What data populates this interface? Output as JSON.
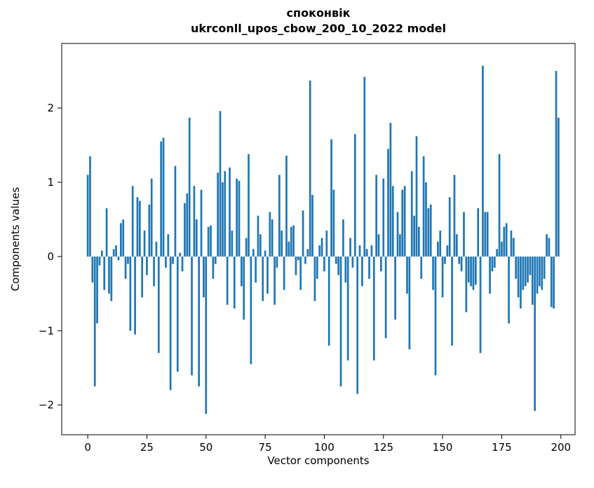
{
  "chart_data": {
    "type": "bar",
    "title_line1": "споконвік",
    "title_line2": "ukrconll_upos_cbow_200_10_2022 model",
    "xlabel": "Vector components",
    "ylabel": "Components values",
    "bar_color": "#1f77b4",
    "bar_width": 0.8,
    "x_start": 0,
    "xlim": [
      -11,
      206
    ],
    "ylim": [
      -2.4,
      2.87
    ],
    "grid": false,
    "legend": "none",
    "xticks": [
      {
        "v": 0,
        "label": "0"
      },
      {
        "v": 25,
        "label": "25"
      },
      {
        "v": 50,
        "label": "50"
      },
      {
        "v": 75,
        "label": "75"
      },
      {
        "v": 100,
        "label": "100"
      },
      {
        "v": 125,
        "label": "125"
      },
      {
        "v": 150,
        "label": "150"
      },
      {
        "v": 175,
        "label": "175"
      },
      {
        "v": 200,
        "label": "200"
      }
    ],
    "yticks": [
      {
        "v": -2,
        "label": "−2"
      },
      {
        "v": -1,
        "label": "−1"
      },
      {
        "v": 0,
        "label": "0"
      },
      {
        "v": 1,
        "label": "1"
      },
      {
        "v": 2,
        "label": "2"
      }
    ],
    "values": [
      1.1,
      1.35,
      -0.35,
      -1.75,
      -0.9,
      -0.12,
      0.08,
      -0.45,
      0.65,
      -0.5,
      -0.6,
      0.1,
      0.15,
      -0.05,
      0.45,
      0.5,
      -0.3,
      -0.1,
      -1.0,
      0.95,
      -1.05,
      0.8,
      0.75,
      -0.55,
      0.35,
      -0.25,
      0.7,
      1.05,
      -0.4,
      0.2,
      -1.3,
      1.55,
      1.6,
      -0.15,
      0.3,
      -1.8,
      -0.1,
      1.22,
      -1.55,
      0.05,
      -0.2,
      0.72,
      0.85,
      1.87,
      -1.6,
      0.95,
      0.5,
      -1.75,
      0.9,
      -0.55,
      -2.12,
      0.4,
      0.42,
      -0.3,
      -0.1,
      1.13,
      1.96,
      1.0,
      1.15,
      -0.65,
      1.2,
      0.35,
      -0.7,
      1.05,
      1.02,
      -0.4,
      -0.85,
      0.25,
      1.38,
      -1.45,
      0.1,
      -0.35,
      0.55,
      0.3,
      -0.6,
      0.08,
      -0.5,
      0.6,
      0.5,
      -0.65,
      -0.15,
      1.1,
      0.35,
      -0.45,
      1.36,
      0.2,
      0.4,
      0.42,
      -0.25,
      -0.05,
      -0.45,
      0.62,
      -0.1,
      0.1,
      2.37,
      0.83,
      -0.6,
      -0.3,
      0.15,
      0.25,
      -0.2,
      0.35,
      -1.2,
      1.58,
      0.9,
      -0.1,
      -0.25,
      -1.75,
      0.5,
      -0.35,
      -1.4,
      0.25,
      -0.15,
      1.65,
      -1.85,
      0.15,
      -0.4,
      2.42,
      0.1,
      -0.3,
      0.15,
      -1.4,
      1.1,
      0.3,
      -0.2,
      1.05,
      -1.1,
      1.45,
      1.8,
      0.95,
      -0.85,
      0.6,
      0.3,
      0.9,
      0.95,
      -0.5,
      -1.25,
      1.15,
      0.55,
      1.62,
      0.4,
      -0.3,
      1.35,
      1.0,
      0.65,
      0.7,
      -0.45,
      -1.6,
      0.2,
      0.35,
      -0.55,
      -0.1,
      0.15,
      0.8,
      -1.2,
      1.1,
      0.3,
      -0.1,
      -0.2,
      0.6,
      -0.75,
      -0.35,
      -0.4,
      -0.45,
      -0.38,
      0.65,
      -1.3,
      2.57,
      0.6,
      0.6,
      -0.5,
      -0.2,
      -0.15,
      0.1,
      1.38,
      0.2,
      0.4,
      0.45,
      -0.9,
      0.35,
      0.25,
      -0.3,
      -0.55,
      -0.7,
      -0.45,
      -0.4,
      -0.35,
      -0.25,
      -0.65,
      -2.08,
      -0.5,
      -0.4,
      -0.45,
      -0.3,
      0.3,
      0.25,
      -0.68,
      -0.7,
      2.5,
      1.87
    ]
  }
}
